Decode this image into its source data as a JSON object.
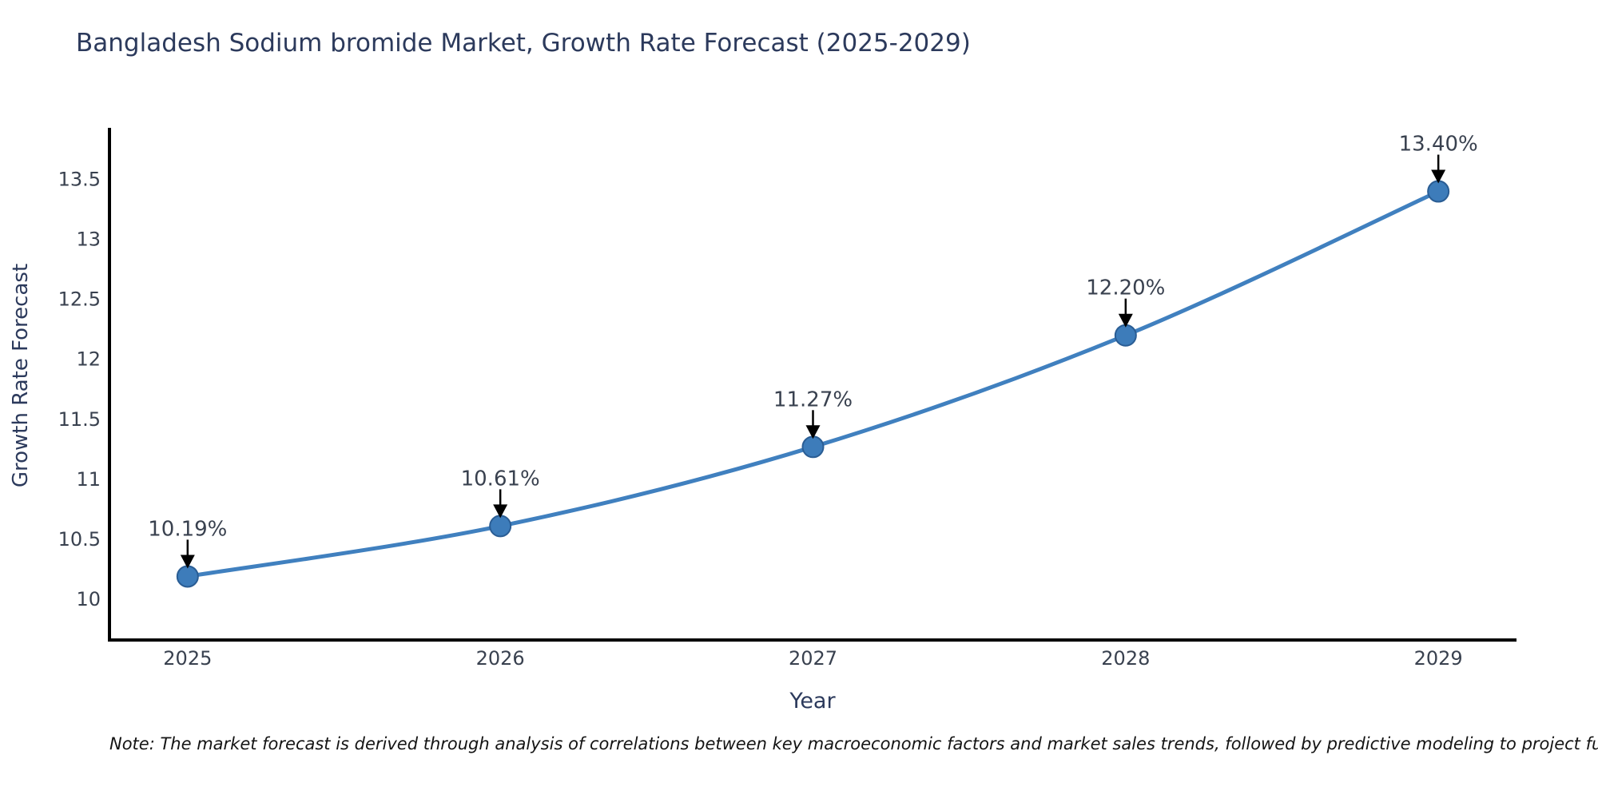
{
  "page": {
    "title": "Bangladesh Sodium bromide Market, Growth Rate Forecast (2025-2029)",
    "note": "Note: The market forecast is derived through analysis of correlations between key macroeconomic factors and market sales trends, followed by predictive modeling to project future sal"
  },
  "chart_data": {
    "type": "line",
    "title": "Bangladesh Sodium bromide Market, Growth Rate Forecast (2025-2029)",
    "xlabel": "Year",
    "ylabel": "Growth Rate Forecast",
    "x": [
      2025,
      2026,
      2027,
      2028,
      2029
    ],
    "x_tick_labels": [
      "2025",
      "2026",
      "2027",
      "2028",
      "2029"
    ],
    "values": [
      10.19,
      10.61,
      11.27,
      12.2,
      13.4
    ],
    "point_labels": [
      "10.19%",
      "10.61%",
      "11.27%",
      "12.20%",
      "13.40%"
    ],
    "y_ticks": [
      10,
      10.5,
      11,
      11.5,
      12,
      12.5,
      13,
      13.5
    ],
    "y_tick_labels": [
      "10",
      "10.5",
      "11",
      "11.5",
      "12",
      "12.5",
      "13",
      "13.5"
    ],
    "xlim": [
      2024.75,
      2029.25
    ],
    "ylim": [
      9.66,
      13.93
    ],
    "grid": false,
    "legend": "none",
    "annotation_style": "down-arrow",
    "colors": {
      "line": "#4080bf",
      "marker_fill": "#3d7cba",
      "marker_edge": "#2a5d94",
      "axis": "#000000",
      "arrow": "#000000",
      "title_text": "#2c3a5c",
      "tick_text": "#39414f",
      "annotation_text": "#39414f"
    }
  }
}
